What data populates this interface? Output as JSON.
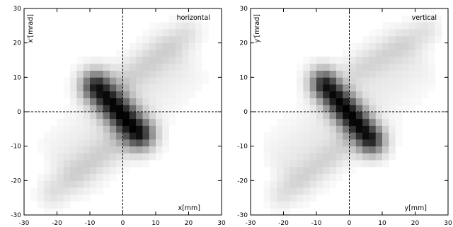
{
  "chart_data": [
    {
      "type": "heatmap",
      "panel_label": "horizontal",
      "xlabel": "x[mm]",
      "ylabel": "x'[mrad]",
      "xlim": [
        -30,
        30
      ],
      "ylim": [
        -30,
        30
      ],
      "x_ticks": [
        -30,
        -20,
        -10,
        0,
        10,
        20,
        30
      ],
      "y_ticks": [
        -30,
        -20,
        -10,
        0,
        10,
        20,
        30
      ],
      "crosshair": [
        0,
        0
      ],
      "cell_size": [
        2,
        2
      ],
      "density_model": {
        "core": {
          "x": -1.5,
          "y": 0.5,
          "slope": -1.05,
          "half_length": 9,
          "width": 3.2,
          "peak": 0.92
        },
        "upper_arm": {
          "x": 10,
          "y": 16,
          "slope": 0.72,
          "half_length": 11,
          "width": 3.2,
          "peak": 0.13
        },
        "lower_arm": {
          "x": -11,
          "y": -16,
          "slope": 0.72,
          "half_length": 12,
          "width": 3.2,
          "peak": 0.13
        },
        "halo": {
          "x": 0,
          "y": 0,
          "slope": 0.9,
          "half_length": 22,
          "width": 7,
          "peak": 0.08
        }
      }
    },
    {
      "type": "heatmap",
      "panel_label": "vertical",
      "xlabel": "y[mm]",
      "ylabel": "y'[mrad]",
      "xlim": [
        -30,
        30
      ],
      "ylim": [
        -30,
        30
      ],
      "x_ticks": [
        -30,
        -20,
        -10,
        0,
        10,
        20,
        30
      ],
      "y_ticks": [
        -30,
        -20,
        -10,
        0,
        10,
        20,
        30
      ],
      "crosshair": [
        0,
        0
      ],
      "cell_size": [
        2,
        2
      ],
      "density_model": {
        "core": {
          "x": -0.5,
          "y": 0,
          "slope": -1.15,
          "half_length": 10,
          "width": 3.0,
          "peak": 0.92
        },
        "upper_arm": {
          "x": 13,
          "y": 18,
          "slope": 0.55,
          "half_length": 11,
          "width": 3.0,
          "peak": 0.12
        },
        "lower_arm": {
          "x": -11,
          "y": -17,
          "slope": 0.75,
          "half_length": 11,
          "width": 3.0,
          "peak": 0.12
        },
        "halo": {
          "x": 0,
          "y": 0,
          "slope": 0.85,
          "half_length": 24,
          "width": 7,
          "peak": 0.08
        }
      }
    }
  ]
}
